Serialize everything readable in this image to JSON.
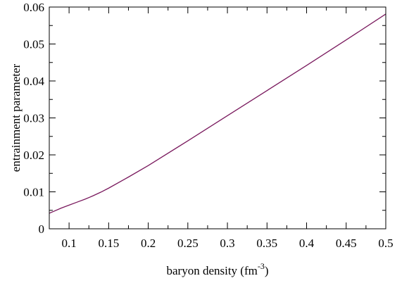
{
  "chart_data": {
    "type": "line",
    "title": "",
    "xlabel": "baryon density (fm",
    "xlabel_superscript": "-3",
    "xlabel_suffix": ")",
    "ylabel": "entrainment parameter",
    "xlim": [
      0.075,
      0.5
    ],
    "ylim": [
      0,
      0.06
    ],
    "x_ticks": [
      0.1,
      0.15,
      0.2,
      0.25,
      0.3,
      0.35,
      0.4,
      0.45,
      0.5
    ],
    "x_tick_labels": [
      "0.1",
      "0.15",
      "0.2",
      "0.25",
      "0.3",
      "0.35",
      "0.4",
      "0.45",
      "0.5"
    ],
    "x_minor_step": 0.025,
    "y_ticks": [
      0,
      0.01,
      0.02,
      0.03,
      0.04,
      0.05,
      0.06
    ],
    "y_tick_labels": [
      "0",
      "0.01",
      "0.02",
      "0.03",
      "0.04",
      "0.05",
      "0.06"
    ],
    "y_minor_step": 0.005,
    "grid": false,
    "legend": "none",
    "series": [
      {
        "color": "#7a1a5e",
        "x": [
          0.075,
          0.09,
          0.1,
          0.11,
          0.12,
          0.13,
          0.14,
          0.15,
          0.175,
          0.2,
          0.25,
          0.3,
          0.35,
          0.4,
          0.45,
          0.5
        ],
        "y": [
          0.0042,
          0.0056,
          0.0064,
          0.0072,
          0.008,
          0.0089,
          0.0099,
          0.011,
          0.014,
          0.0171,
          0.0238,
          0.0306,
          0.0374,
          0.0442,
          0.0511,
          0.0581
        ]
      }
    ]
  }
}
